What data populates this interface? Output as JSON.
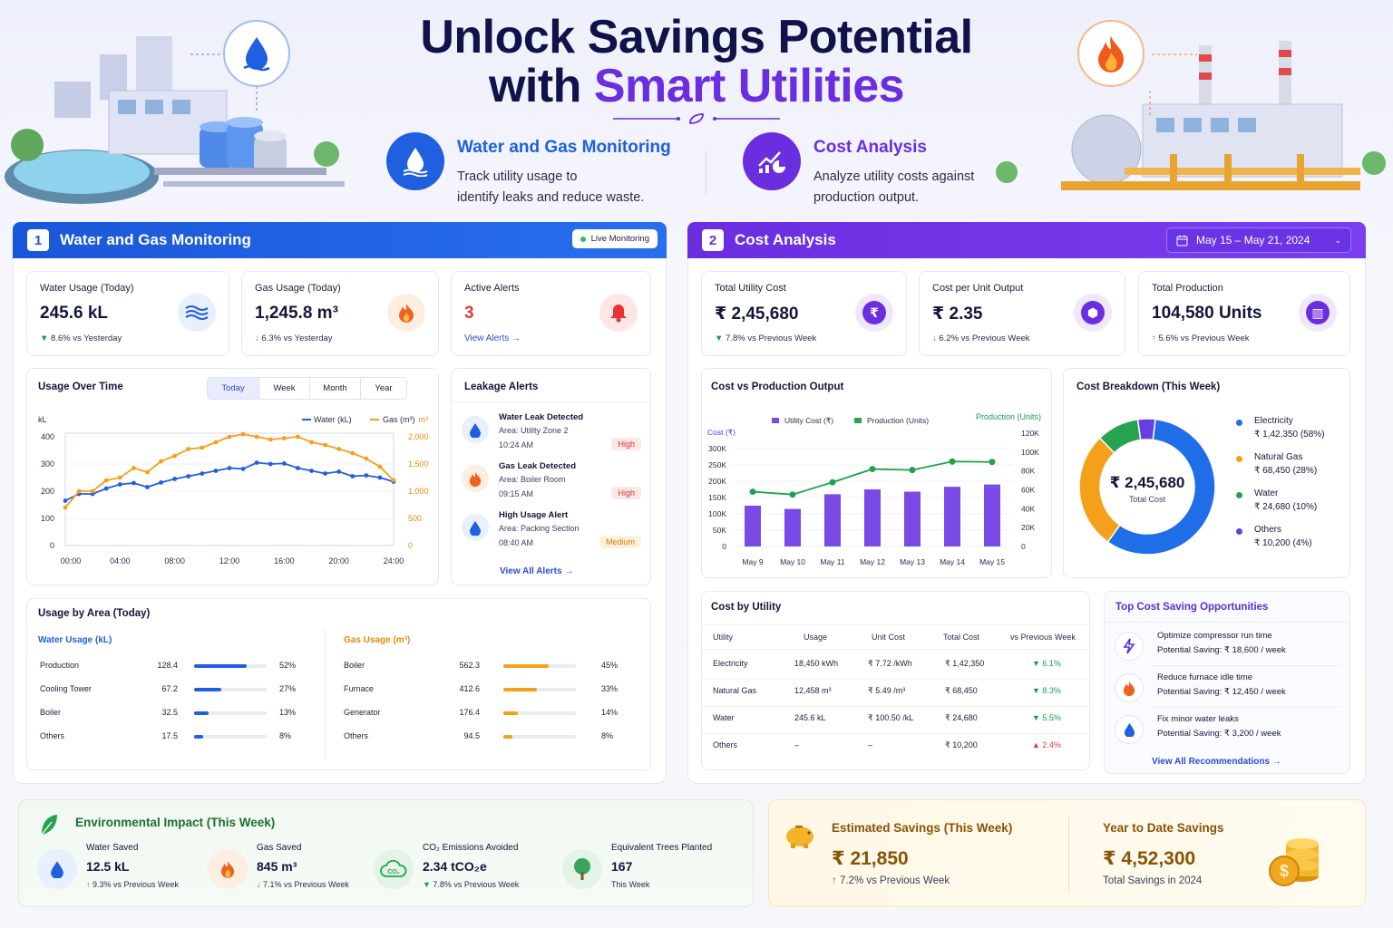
{
  "hero": {
    "title_line1": "Unlock Savings Potential",
    "title_line2_a": "with ",
    "title_line2_b": "Smart Utilities",
    "features": [
      {
        "title": "Water and Gas Monitoring",
        "desc1": "Track utility usage to",
        "desc2": "identify leaks and reduce waste.",
        "icon": "water-drop-icon"
      },
      {
        "title": "Cost Analysis",
        "desc1": "Analyze utility costs against",
        "desc2": "production output.",
        "icon": "chart-pie-icon"
      }
    ]
  },
  "colors": {
    "blue": "#1f5fe0",
    "purple": "#6a2ee0",
    "orange": "#f5a01a",
    "green": "#1a9a4a"
  },
  "monitoring": {
    "num": "1",
    "title": "Water and Gas Monitoring",
    "live": "Live Monitoring",
    "kpis": [
      {
        "label": "Water Usage (Today)",
        "value": "245.6 kL",
        "delta": "8.6% vs Yesterday"
      },
      {
        "label": "Gas Usage (Today)",
        "value": "1,245.8 m³",
        "delta": "6.3% vs Yesterday"
      },
      {
        "label": "Active Alerts",
        "value": "3",
        "link": "View Alerts"
      }
    ],
    "usage": {
      "title": "Usage Over Time",
      "tabs": [
        "Today",
        "Week",
        "Month",
        "Year"
      ],
      "left_unit": "kL",
      "right_unit": "m³",
      "legend_water": "Water (kL)",
      "legend_gas": "Gas (m³)"
    },
    "leaks": {
      "title": "Leakage Alerts",
      "items": [
        {
          "title": "Water Leak Detected",
          "area": "Area: Utility Zone 2",
          "time": "10:24 AM",
          "level": "High"
        },
        {
          "title": "Gas Leak Detected",
          "area": "Area: Boiler Room",
          "time": "09:15 AM",
          "level": "High"
        },
        {
          "title": "High Usage Alert",
          "area": "Area: Packing Section",
          "time": "08:40 AM",
          "level": "Medium"
        }
      ],
      "link": "View All Alerts"
    },
    "area": {
      "title": "Usage by Area (Today)",
      "water_title": "Water Usage (kL)",
      "gas_title": "Gas Usage (m³)",
      "water": [
        {
          "name": "Production",
          "val": "128.4",
          "pct": "52%",
          "f": 0.72
        },
        {
          "name": "Cooling Tower",
          "val": "67.2",
          "pct": "27%",
          "f": 0.38
        },
        {
          "name": "Boiler",
          "val": "32.5",
          "pct": "13%",
          "f": 0.2
        },
        {
          "name": "Others",
          "val": "17.5",
          "pct": "8%",
          "f": 0.12
        }
      ],
      "gas": [
        {
          "name": "Boiler",
          "val": "562.3",
          "pct": "45%",
          "f": 0.62
        },
        {
          "name": "Furnace",
          "val": "412.6",
          "pct": "33%",
          "f": 0.46
        },
        {
          "name": "Generator",
          "val": "176.4",
          "pct": "14%",
          "f": 0.2
        },
        {
          "name": "Others",
          "val": "94.5",
          "pct": "8%",
          "f": 0.12
        }
      ]
    }
  },
  "cost": {
    "num": "2",
    "title": "Cost Analysis",
    "date_range": "May 15 – May 21, 2024",
    "kpis": [
      {
        "label": "Total Utility Cost",
        "value": "₹ 2,45,680",
        "delta": "7.8% vs Previous Week"
      },
      {
        "label": "Cost per Unit Output",
        "value": "₹ 2.35",
        "delta": "6.2% vs Previous Week"
      },
      {
        "label": "Total Production",
        "value": "104,580 Units",
        "delta": "5.6% vs Previous Week"
      }
    ],
    "cvp": {
      "title": "Cost vs Production Output",
      "legend_cost": "Utility Cost (₹)",
      "legend_prod": "Production (Units)",
      "left_title": "Cost (₹)",
      "right_title": "Production (Units)"
    },
    "breakdown": {
      "title": "Cost Breakdown (This Week)",
      "center_value": "₹ 2,45,680",
      "center_label": "Total Cost",
      "items": [
        {
          "name": "Electricity",
          "value": "₹ 1,42,350 (58%)",
          "color": "#1f6ee8"
        },
        {
          "name": "Natural Gas",
          "value": "₹ 68,450 (28%)",
          "color": "#f5a01a"
        },
        {
          "name": "Water",
          "value": "₹ 24,680 (10%)",
          "color": "#27a34f"
        },
        {
          "name": "Others",
          "value": "₹ 10,200 (4%)",
          "color": "#6a3fe0"
        }
      ]
    },
    "table": {
      "title": "Cost by Utility",
      "headers": [
        "Utility",
        "Usage",
        "Unit Cost",
        "Total Cost",
        "vs Previous Week"
      ],
      "rows": [
        {
          "u": "Electricity",
          "usage": "18,450 kWh",
          "unit": "₹ 7.72 /kWh",
          "total": "₹ 1,42,350",
          "delta": "6.1%",
          "dir": "down"
        },
        {
          "u": "Natural Gas",
          "usage": "12,458 m³",
          "unit": "₹ 5.49 /m³",
          "total": "₹ 68,450",
          "delta": "8.3%",
          "dir": "down"
        },
        {
          "u": "Water",
          "usage": "245.6 kL",
          "unit": "₹ 100.50 /kL",
          "total": "₹ 24,680",
          "delta": "5.5%",
          "dir": "down"
        },
        {
          "u": "Others",
          "usage": "–",
          "unit": "–",
          "total": "₹ 10,200",
          "delta": "2.4%",
          "dir": "up"
        }
      ]
    },
    "opps": {
      "title": "Top Cost Saving Opportunities",
      "items": [
        {
          "title": "Optimize compressor run time",
          "saving": "Potential Saving: ₹ 18,600 / week",
          "icon": "lightning-icon"
        },
        {
          "title": "Reduce furnace idle time",
          "saving": "Potential Saving: ₹ 12,450 / week",
          "icon": "flame-icon"
        },
        {
          "title": "Fix minor water leaks",
          "saving": "Potential Saving: ₹ 3,200 / week",
          "icon": "water-drop-icon"
        }
      ],
      "link": "View All Recommendations"
    }
  },
  "env": {
    "title": "Environmental Impact (This Week)",
    "items": [
      {
        "label": "Water Saved",
        "value": "12.5 kL",
        "delta": "9.3% vs Previous Week"
      },
      {
        "label": "Gas Saved",
        "value": "845 m³",
        "delta": "7.1% vs Previous Week"
      },
      {
        "label": "CO₂ Emissions Avoided",
        "value": "2.34 tCO₂e",
        "delta": "7.8% vs Previous Week"
      },
      {
        "label": "Equivalent Trees Planted",
        "value": "167",
        "delta": "This Week"
      }
    ]
  },
  "savings": {
    "week_label": "Estimated Savings (This Week)",
    "week_value": "₹ 21,850",
    "week_delta": "7.2% vs Previous Week",
    "ytd_label": "Year to Date Savings",
    "ytd_value": "₹ 4,52,300",
    "ytd_sub": "Total Savings in 2024"
  },
  "chart_data": [
    {
      "type": "line",
      "title": "Usage Over Time",
      "x": [
        "00:00",
        "01:00",
        "02:00",
        "03:00",
        "04:00",
        "05:00",
        "06:00",
        "07:00",
        "08:00",
        "09:00",
        "10:00",
        "11:00",
        "12:00",
        "13:00",
        "14:00",
        "15:00",
        "16:00",
        "17:00",
        "18:00",
        "19:00",
        "20:00",
        "21:00",
        "22:00",
        "23:00",
        "24:00"
      ],
      "xticks": [
        "00:00",
        "04:00",
        "08:00",
        "12:00",
        "16:00",
        "20:00",
        "24:00"
      ],
      "series": [
        {
          "name": "Water (kL)",
          "axis": "left",
          "values": [
            165,
            190,
            190,
            210,
            225,
            230,
            215,
            232,
            245,
            255,
            265,
            275,
            285,
            282,
            305,
            300,
            302,
            285,
            275,
            265,
            272,
            255,
            258,
            250,
            235
          ]
        },
        {
          "name": "Gas (m³)",
          "axis": "right",
          "values": [
            140,
            200,
            200,
            240,
            250,
            285,
            270,
            310,
            330,
            355,
            360,
            380,
            400,
            410,
            400,
            390,
            395,
            400,
            380,
            370,
            355,
            340,
            320,
            290,
            240
          ]
        }
      ],
      "ylim_left": [
        0,
        400
      ],
      "yticks_left": [
        0,
        100,
        200,
        300,
        400
      ],
      "ylim_right": [
        0,
        2000
      ],
      "yticks_right": [
        "0",
        "500",
        "1,000",
        "1,500",
        "2,000"
      ]
    },
    {
      "type": "bar",
      "title": "Cost vs Production Output",
      "categories": [
        "May 9",
        "May 10",
        "May 11",
        "May 12",
        "May 13",
        "May 14",
        "May 15"
      ],
      "series": [
        {
          "name": "Utility Cost (₹)",
          "type": "bar",
          "axis": "left",
          "values": [
            125000,
            115000,
            160000,
            175000,
            168000,
            183000,
            190000
          ]
        },
        {
          "name": "Production (Units)",
          "type": "line",
          "axis": "right",
          "values": [
            58000,
            55000,
            68000,
            82000,
            81000,
            90000,
            89500
          ]
        }
      ],
      "ylim_left": [
        0,
        300000
      ],
      "yticks_left": [
        "0",
        "50K",
        "100K",
        "150K",
        "200K",
        "250K",
        "300K"
      ],
      "ylim_right": [
        0,
        120000
      ],
      "yticks_right": [
        "0",
        "20K",
        "40K",
        "60K",
        "80K",
        "100K",
        "120K"
      ]
    },
    {
      "type": "pie",
      "title": "Cost Breakdown (This Week)",
      "categories": [
        "Electricity",
        "Natural Gas",
        "Water",
        "Others"
      ],
      "values": [
        142350,
        68450,
        24680,
        10200
      ]
    }
  ]
}
